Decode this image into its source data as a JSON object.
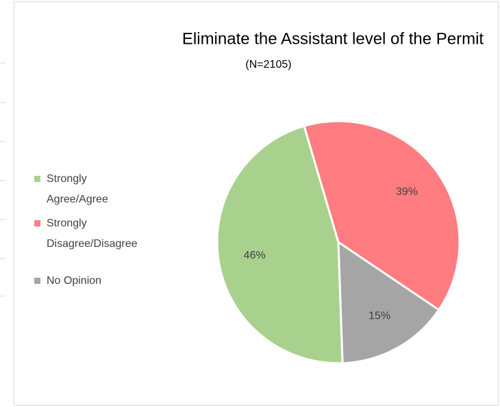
{
  "chart_data": {
    "type": "pie",
    "title": "Eliminate the Assistant level of the Permit",
    "subtitle": "(N=2105)",
    "categories": [
      "Strongly Agree/Agree",
      "Strongly Disagree/Disagree",
      "No Opinion"
    ],
    "values": [
      46,
      39,
      15
    ],
    "value_labels": [
      "46%",
      "39%",
      "15%"
    ],
    "colors": [
      "#a9d18e",
      "#ff7c80",
      "#a5a5a5"
    ],
    "legend": "left"
  }
}
